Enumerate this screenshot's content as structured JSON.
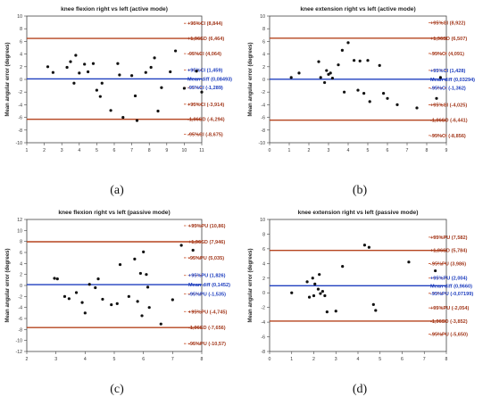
{
  "colors": {
    "mean_line": "#1f3fbf",
    "limit_line": "#b5441f",
    "ci_line": "#c8502a",
    "blue_label": "#1f3fbf",
    "red_label": "#a33a1e",
    "point": "#111111",
    "axis": "#444444"
  },
  "panel_labels": [
    "(a)",
    "(b)",
    "(c)",
    "(d)"
  ],
  "chart_data": [
    {
      "type": "scatter",
      "title": "knee flexion right vs left (active mode)",
      "xlabel": "",
      "ylabel": "Mean angular error (degrees)",
      "xlim": [
        1,
        11
      ],
      "ylim": [
        -10,
        10
      ],
      "xticks": [
        "1",
        "2",
        "3",
        "4",
        "5",
        "6",
        "7",
        "8",
        "9",
        "10",
        "11"
      ],
      "yticks": [
        "-10",
        "-8",
        "-6",
        "-4",
        "-2",
        "0",
        "2",
        "4",
        "6",
        "8",
        "10"
      ],
      "points": [
        [
          2.2,
          2.0
        ],
        [
          2.5,
          1.1
        ],
        [
          3.3,
          1.9
        ],
        [
          3.5,
          2.8
        ],
        [
          3.7,
          -0.6
        ],
        [
          3.8,
          3.8
        ],
        [
          4.0,
          1.0
        ],
        [
          4.3,
          2.4
        ],
        [
          4.5,
          1.2
        ],
        [
          4.8,
          2.5
        ],
        [
          5.0,
          -1.7
        ],
        [
          5.2,
          -2.7
        ],
        [
          5.3,
          -0.6
        ],
        [
          5.8,
          -4.9
        ],
        [
          6.2,
          2.5
        ],
        [
          6.3,
          0.7
        ],
        [
          6.5,
          -6.0
        ],
        [
          7.0,
          0.6
        ],
        [
          7.2,
          -2.6
        ],
        [
          7.3,
          -6.5
        ],
        [
          7.8,
          1.1
        ],
        [
          8.1,
          1.9
        ],
        [
          8.3,
          3.4
        ],
        [
          8.5,
          -5.0
        ],
        [
          8.7,
          -1.3
        ],
        [
          9.2,
          1.2
        ],
        [
          9.5,
          4.5
        ],
        [
          10.0,
          -1.4
        ],
        [
          10.7,
          1.3
        ],
        [
          11.0,
          -2.0
        ]
      ],
      "hlines": [
        {
          "y": 8.844,
          "style": "ci",
          "label": "+95%CI (8,844)"
        },
        {
          "y": 6.464,
          "style": "limit",
          "label": "+1,96SD (6,464)"
        },
        {
          "y": 4.064,
          "style": "ci",
          "label": "-95%CI (4,064)"
        },
        {
          "y": 1.459,
          "style": "ci",
          "label": "+95%CI (1,459)"
        },
        {
          "y": 0.08493,
          "style": "mean",
          "label": "Mean diff (0,08493)"
        },
        {
          "y": -1.289,
          "style": "ci",
          "label": "-95%CI (-1,289)"
        },
        {
          "y": -3.914,
          "style": "ci",
          "label": "+95%CI (-3,914)"
        },
        {
          "y": -6.294,
          "style": "limit",
          "label": "-1,96SD (-6,294)"
        },
        {
          "y": -8.675,
          "style": "ci",
          "label": "-95%CI (-8,675)"
        }
      ]
    },
    {
      "type": "scatter",
      "title": "knee extension right vs left (active mode)",
      "xlabel": "",
      "ylabel": "Mean angular error (degrees)",
      "xlim": [
        0,
        9
      ],
      "ylim": [
        -10,
        10
      ],
      "xticks": [
        "0",
        "1",
        "2",
        "3",
        "4",
        "5",
        "6",
        "7",
        "8",
        "9"
      ],
      "yticks": [
        "-10",
        "-8",
        "-6",
        "-4",
        "-2",
        "0",
        "2",
        "4",
        "6",
        "8",
        "10"
      ],
      "points": [
        [
          1.1,
          0.3
        ],
        [
          1.5,
          1.0
        ],
        [
          2.5,
          2.8
        ],
        [
          2.6,
          0.3
        ],
        [
          2.8,
          -0.5
        ],
        [
          2.9,
          1.4
        ],
        [
          3.0,
          0.8
        ],
        [
          3.1,
          1.0
        ],
        [
          3.2,
          0.2
        ],
        [
          3.5,
          2.3
        ],
        [
          3.7,
          4.6
        ],
        [
          3.8,
          -2.0
        ],
        [
          4.0,
          5.8
        ],
        [
          4.3,
          3.0
        ],
        [
          4.5,
          -1.7
        ],
        [
          4.6,
          2.9
        ],
        [
          4.8,
          -2.2
        ],
        [
          5.0,
          3.0
        ],
        [
          5.1,
          -3.5
        ],
        [
          5.6,
          2.2
        ],
        [
          5.8,
          -2.2
        ],
        [
          6.0,
          -3.0
        ],
        [
          6.5,
          -4.0
        ],
        [
          7.5,
          -4.5
        ],
        [
          8.5,
          -3.0
        ],
        [
          8.7,
          0.3
        ]
      ],
      "hlines": [
        {
          "y": 8.922,
          "style": "ci",
          "label": "+95%CI (8,922)"
        },
        {
          "y": 6.507,
          "style": "limit",
          "label": "+1,96SD (6,507)"
        },
        {
          "y": 4.091,
          "style": "ci",
          "label": "-95%CI (4,091)"
        },
        {
          "y": 1.428,
          "style": "ci",
          "label": "+95%CI (1,428)"
        },
        {
          "y": 0.03294,
          "style": "mean",
          "label": "Mean diff (0,03294)"
        },
        {
          "y": -1.362,
          "style": "ci",
          "label": "-95%CI (-1,362)"
        },
        {
          "y": -4.025,
          "style": "ci",
          "label": "+95%CI (-4,025)"
        },
        {
          "y": -6.441,
          "style": "limit",
          "label": "-1,96SD (-6,441)"
        },
        {
          "y": -8.856,
          "style": "ci",
          "label": "-95%CI (-8,856)"
        }
      ]
    },
    {
      "type": "scatter",
      "title": "knee flexion right vs left (passive mode)",
      "xlabel": "",
      "ylabel": "Mean angular error (degrees)",
      "xlim": [
        2,
        8
      ],
      "ylim": [
        -12,
        12
      ],
      "xticks": [
        "2",
        "3",
        "4",
        "5",
        "6",
        "7",
        "8"
      ],
      "yticks": [
        "-12",
        "-10",
        "-8",
        "-6",
        "-4",
        "-2",
        "0",
        "2",
        "4",
        "6",
        "8",
        "10",
        "12"
      ],
      "points": [
        [
          2.95,
          1.3
        ],
        [
          3.05,
          1.2
        ],
        [
          3.3,
          -2.0
        ],
        [
          3.45,
          -2.4
        ],
        [
          3.7,
          -1.3
        ],
        [
          3.9,
          -3.1
        ],
        [
          4.0,
          -5.0
        ],
        [
          4.15,
          0.2
        ],
        [
          4.35,
          -0.4
        ],
        [
          4.45,
          1.2
        ],
        [
          4.6,
          -2.5
        ],
        [
          4.9,
          -3.5
        ],
        [
          5.1,
          -3.3
        ],
        [
          5.2,
          3.8
        ],
        [
          5.5,
          -2.0
        ],
        [
          5.7,
          4.8
        ],
        [
          5.8,
          -2.9
        ],
        [
          5.9,
          2.2
        ],
        [
          5.95,
          -5.5
        ],
        [
          6.0,
          6.1
        ],
        [
          6.1,
          2.0
        ],
        [
          6.15,
          -0.3
        ],
        [
          6.2,
          -4.0
        ],
        [
          6.6,
          -7.0
        ],
        [
          7.0,
          -2.6
        ],
        [
          7.3,
          7.3
        ],
        [
          7.7,
          6.4
        ]
      ],
      "hlines": [
        {
          "y": 10.86,
          "style": "ci",
          "label": "+95%PU (10,86)"
        },
        {
          "y": 7.946,
          "style": "limit",
          "label": "+1,96SD (7,946)"
        },
        {
          "y": 5.035,
          "style": "ci",
          "label": "-95%PU (5,035)"
        },
        {
          "y": 1.826,
          "style": "ci",
          "label": "+95%PU (1,826)"
        },
        {
          "y": 0.1452,
          "style": "mean",
          "label": "Mean diff (0,1452)"
        },
        {
          "y": -1.535,
          "style": "ci",
          "label": "-95%PU (-1,535)"
        },
        {
          "y": -4.745,
          "style": "ci",
          "label": "+95%PU (-4,745)"
        },
        {
          "y": -7.656,
          "style": "limit",
          "label": "-1,96SD (-7,656)"
        },
        {
          "y": -10.57,
          "style": "ci",
          "label": "-95%PU (-10,57)"
        }
      ]
    },
    {
      "type": "scatter",
      "title": "knee extension right vs left (passive mode)",
      "xlabel": "",
      "ylabel": "Mean angular error (degrees)",
      "xlim": [
        0,
        8
      ],
      "ylim": [
        -8,
        10
      ],
      "xticks": [
        "0",
        "1",
        "2",
        "3",
        "4",
        "5",
        "6",
        "7",
        "8"
      ],
      "yticks": [
        "-8",
        "-6",
        "-4",
        "-2",
        "0",
        "2",
        "4",
        "6",
        "8",
        "10"
      ],
      "points": [
        [
          1.0,
          0.0
        ],
        [
          1.7,
          1.5
        ],
        [
          1.8,
          -0.6
        ],
        [
          1.95,
          2.0
        ],
        [
          2.0,
          -0.4
        ],
        [
          2.05,
          1.2
        ],
        [
          2.2,
          0.5
        ],
        [
          2.25,
          2.5
        ],
        [
          2.3,
          -0.1
        ],
        [
          2.4,
          0.2
        ],
        [
          2.5,
          -0.4
        ],
        [
          2.6,
          -2.6
        ],
        [
          3.0,
          -2.5
        ],
        [
          3.3,
          3.6
        ],
        [
          4.3,
          6.5
        ],
        [
          4.5,
          6.2
        ],
        [
          4.7,
          -1.6
        ],
        [
          4.8,
          -2.4
        ],
        [
          6.3,
          4.2
        ],
        [
          7.5,
          3.0
        ]
      ],
      "hlines": [
        {
          "y": 7.582,
          "style": "ci",
          "label": "+95%PU (7,582)"
        },
        {
          "y": 5.784,
          "style": "limit",
          "label": "+1,96SD (5,784)"
        },
        {
          "y": 3.986,
          "style": "ci",
          "label": "-95%PU (3,986)"
        },
        {
          "y": 2.004,
          "style": "ci",
          "label": "+95%PU (2,004)"
        },
        {
          "y": 0.966,
          "style": "mean",
          "label": "Mean diff (0,9660)"
        },
        {
          "y": -0.07199,
          "style": "ci",
          "label": "-95%PU (-0,07199)"
        },
        {
          "y": -2.054,
          "style": "ci",
          "label": "+95%PU (-2,054)"
        },
        {
          "y": -3.852,
          "style": "limit",
          "label": "-1,96SD (-3,852)"
        },
        {
          "y": -5.65,
          "style": "ci",
          "label": "-95%PU (-5,650)"
        }
      ]
    }
  ]
}
